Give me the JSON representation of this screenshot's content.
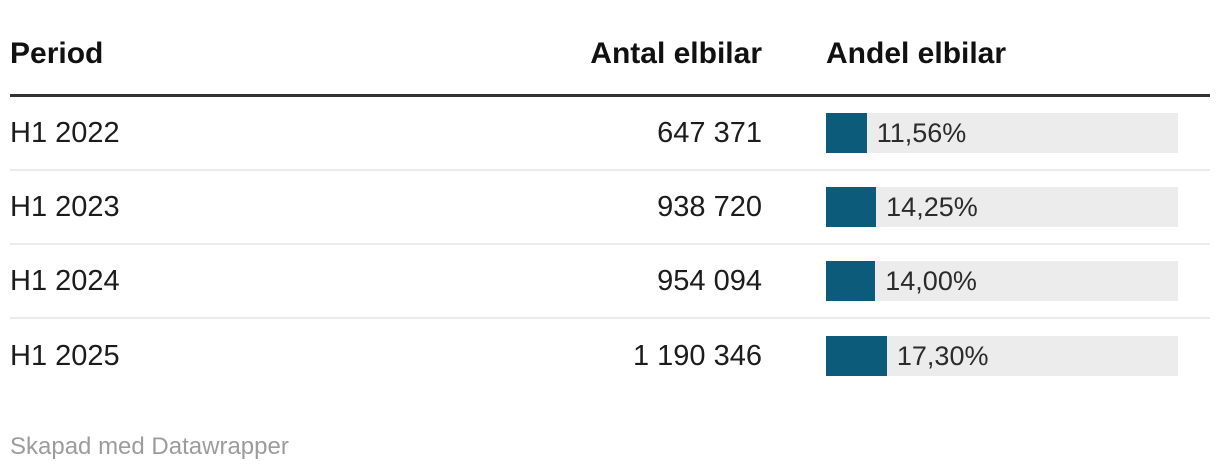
{
  "table": {
    "columns": [
      {
        "label": "Period",
        "align": "left"
      },
      {
        "label": "Antal elbilar",
        "align": "right"
      },
      {
        "label": "Andel elbilar",
        "align": "left"
      }
    ],
    "rows": [
      {
        "period": "H1 2022",
        "antal": "647 371",
        "andel_label": "11,56%",
        "andel_value": 11.56
      },
      {
        "period": "H1 2023",
        "antal": "938 720",
        "andel_label": "14,25%",
        "andel_value": 14.25
      },
      {
        "period": "H1 2024",
        "antal": "954 094",
        "andel_label": "14,00%",
        "andel_value": 14.0
      },
      {
        "period": "H1 2025",
        "antal": "1 190 346",
        "andel_label": "17,30%",
        "andel_value": 17.3
      }
    ]
  },
  "footer": {
    "credit": "Skapad med Datawrapper"
  },
  "colors": {
    "bar_fill": "#0c5b7b",
    "bar_track": "#ececec",
    "header_rule": "#333333",
    "row_separator": "#ebebeb",
    "footer_text": "#9c9c9c"
  },
  "chart_data": {
    "type": "table",
    "title": "",
    "columns": [
      "Period",
      "Antal elbilar",
      "Andel elbilar"
    ],
    "rows": [
      [
        "H1 2022",
        647371,
        11.56
      ],
      [
        "H1 2023",
        938720,
        14.25
      ],
      [
        "H1 2024",
        954094,
        14.0
      ],
      [
        "H1 2025",
        1190346,
        17.3
      ]
    ],
    "bar_column": "Andel elbilar",
    "bar_scale": [
      0,
      100
    ],
    "credit": "Skapad med Datawrapper"
  }
}
